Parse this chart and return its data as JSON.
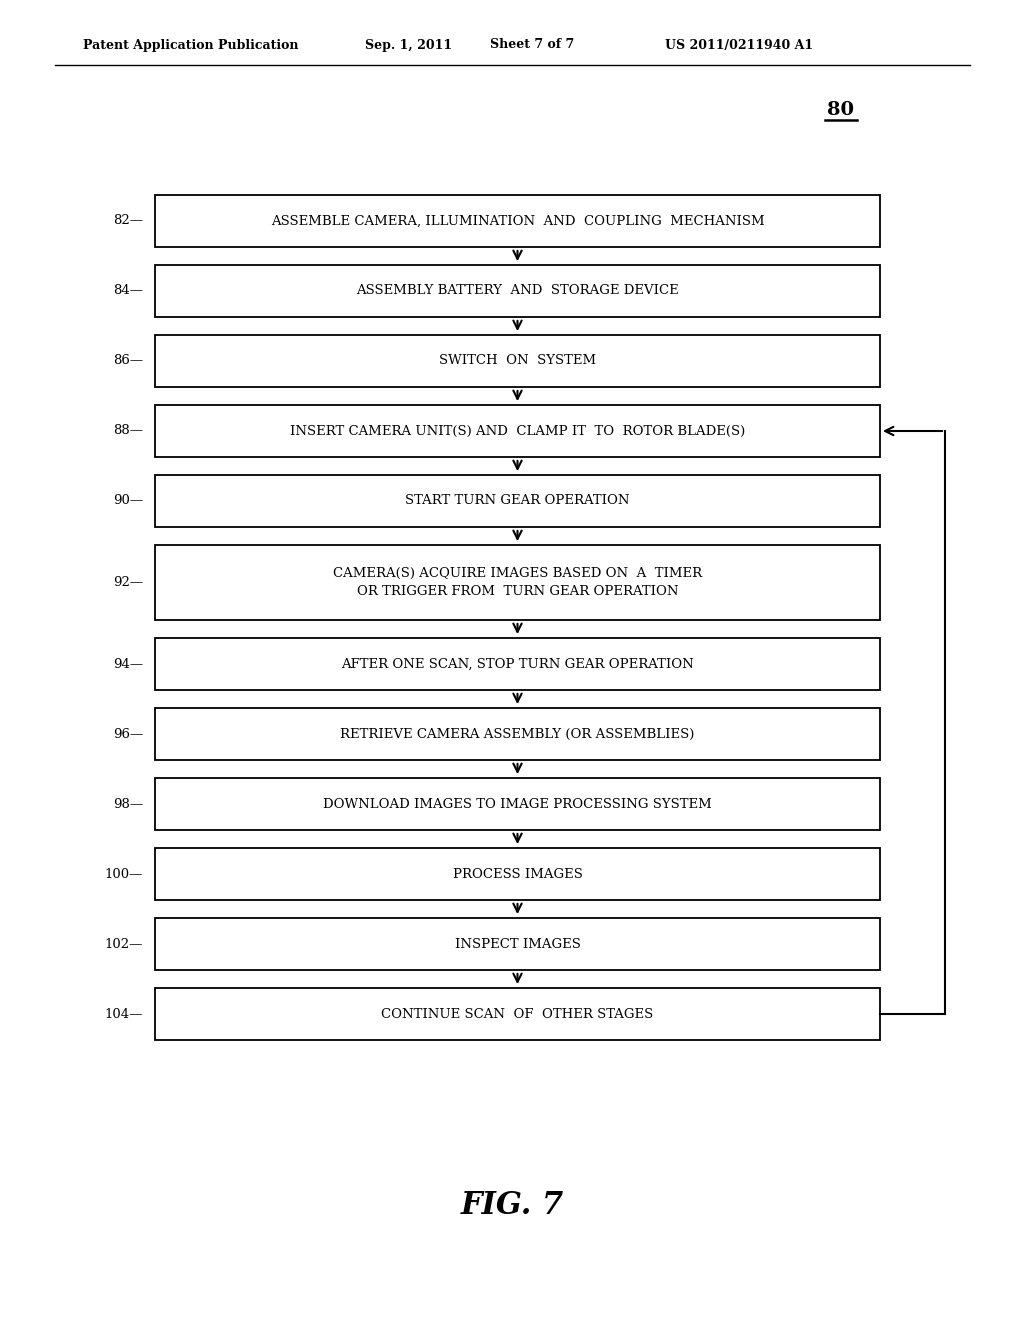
{
  "title_header": "Patent Application Publication",
  "date": "Sep. 1, 2011",
  "sheet": "Sheet 7 of 7",
  "patent_num": "US 2011/0211940 A1",
  "diagram_num": "80",
  "fig_label": "FIG. 7",
  "background_color": "#ffffff",
  "box_color": "#ffffff",
  "box_edge_color": "#000000",
  "arrow_color": "#000000",
  "text_color": "#000000",
  "steps": [
    {
      "num": "82",
      "label": "ASSEMBLE CAMERA, ILLUMINATION  AND  COUPLING  MECHANISM",
      "lines": 1
    },
    {
      "num": "84",
      "label": "ASSEMBLY BATTERY  AND  STORAGE DEVICE",
      "lines": 1
    },
    {
      "num": "86",
      "label": "SWITCH  ON  SYSTEM",
      "lines": 1
    },
    {
      "num": "88",
      "label": "INSERT CAMERA UNIT(S) AND  CLAMP IT  TO  ROTOR BLADE(S)",
      "lines": 1,
      "feedback_arrow": true
    },
    {
      "num": "90",
      "label": "START TURN GEAR OPERATION",
      "lines": 1
    },
    {
      "num": "92",
      "label": "CAMERA(S) ACQUIRE IMAGES BASED ON  A  TIMER\nOR TRIGGER FROM  TURN GEAR OPERATION",
      "lines": 2
    },
    {
      "num": "94",
      "label": "AFTER ONE SCAN, STOP TURN GEAR OPERATION",
      "lines": 1
    },
    {
      "num": "96",
      "label": "RETRIEVE CAMERA ASSEMBLY (OR ASSEMBLIES)",
      "lines": 1
    },
    {
      "num": "98",
      "label": "DOWNLOAD IMAGES TO IMAGE PROCESSING SYSTEM",
      "lines": 1
    },
    {
      "num": "100",
      "label": "PROCESS IMAGES",
      "lines": 1
    },
    {
      "num": "102",
      "label": "INSPECT IMAGES",
      "lines": 1
    },
    {
      "num": "104",
      "label": "CONTINUE SCAN  OF  OTHER STAGES",
      "lines": 1
    }
  ]
}
